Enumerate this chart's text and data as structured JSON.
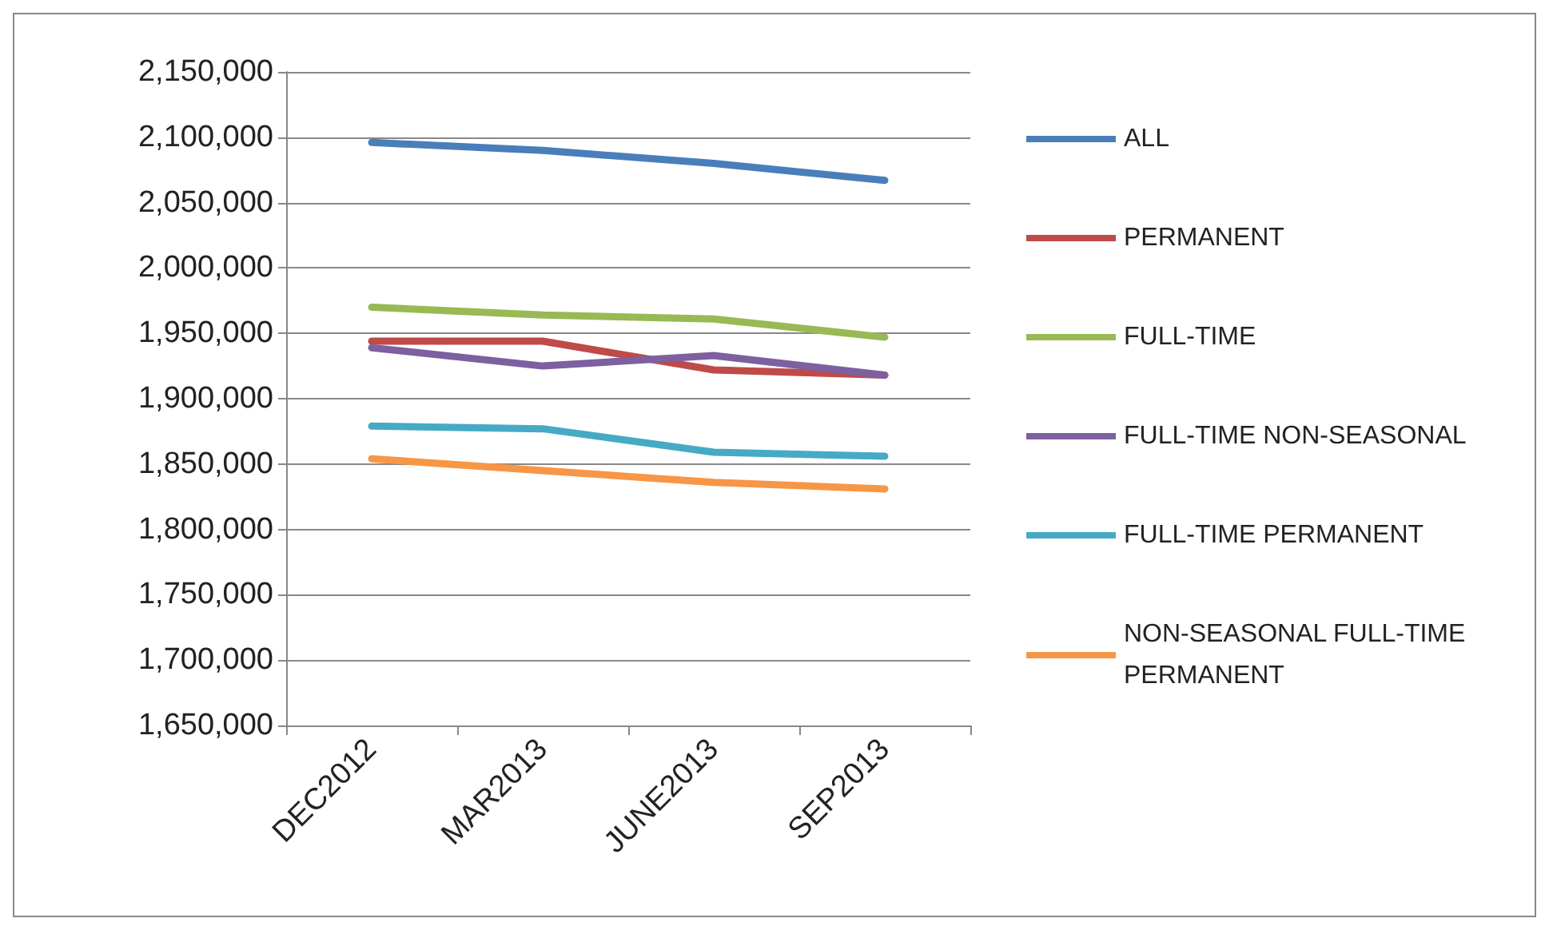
{
  "chart_data": {
    "type": "line",
    "categories": [
      "DEC2012",
      "MAR2013",
      "JUNE2013",
      "SEP2013"
    ],
    "series": [
      {
        "name": "ALL",
        "color": "#4a7ebb",
        "values": [
          2096000,
          2090000,
          2080000,
          2067000
        ]
      },
      {
        "name": "PERMANENT",
        "color": "#be4b48",
        "values": [
          1944000,
          1944000,
          1922000,
          1918000
        ]
      },
      {
        "name": "FULL-TIME",
        "color": "#98b954",
        "values": [
          1970000,
          1964000,
          1961000,
          1947000
        ]
      },
      {
        "name": "FULL-TIME NON-SEASONAL",
        "color": "#7d60a0",
        "values": [
          1939000,
          1925000,
          1933000,
          1918000
        ]
      },
      {
        "name": "FULL-TIME PERMANENT",
        "color": "#46aac5",
        "values": [
          1879000,
          1877000,
          1859000,
          1856000
        ]
      },
      {
        "name": "NON-SEASONAL FULL-TIME PERMANENT",
        "color": "#f79646",
        "values": [
          1854000,
          1845000,
          1836000,
          1831000
        ]
      }
    ],
    "ylim": [
      1650000,
      2150000
    ],
    "yticks": [
      {
        "value": 1650000,
        "label": "1,650,000"
      },
      {
        "value": 1700000,
        "label": "1,700,000"
      },
      {
        "value": 1750000,
        "label": "1,750,000"
      },
      {
        "value": 1800000,
        "label": "1,800,000"
      },
      {
        "value": 1850000,
        "label": "1,850,000"
      },
      {
        "value": 1900000,
        "label": "1,900,000"
      },
      {
        "value": 1950000,
        "label": "1,950,000"
      },
      {
        "value": 2000000,
        "label": "2,000,000"
      },
      {
        "value": 2050000,
        "label": "2,050,000"
      },
      {
        "value": 2100000,
        "label": "2,100,000"
      },
      {
        "value": 2150000,
        "label": "2,150,000"
      }
    ],
    "grid": "y",
    "legend": "right",
    "marker": "none",
    "line_style": "solid"
  }
}
